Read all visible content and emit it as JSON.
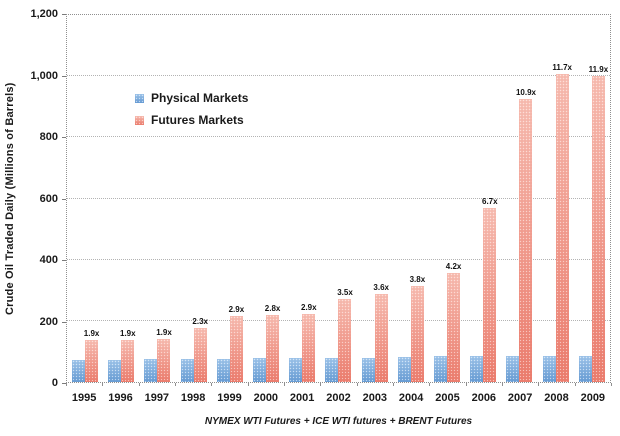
{
  "chart_data": {
    "type": "bar",
    "title": "",
    "ylabel": "Crude Oil Traded Daily (Millions of Barrels)",
    "footnote": "NYMEX WTI Futures + ICE WTI futures + BRENT Futures",
    "categories": [
      "1995",
      "1996",
      "1997",
      "1998",
      "1999",
      "2000",
      "2001",
      "2002",
      "2003",
      "2004",
      "2005",
      "2006",
      "2007",
      "2008",
      "2009"
    ],
    "series": [
      {
        "name": "Physical Markets",
        "key": "physical",
        "color": "#6FA8DC",
        "values": [
          72,
          72,
          74,
          76,
          74,
          78,
          77,
          78,
          80,
          83,
          85,
          85,
          85,
          86,
          84
        ]
      },
      {
        "name": "Futures Markets",
        "key": "futures",
        "color": "#EE8172",
        "values": [
          137,
          137,
          141,
          175,
          215,
          218,
          223,
          273,
          288,
          315,
          357,
          570,
          927,
          1006,
          1000
        ],
        "bar_labels": [
          "1.9x",
          "1.9x",
          "1.9x",
          "2.3x",
          "2.9x",
          "2.8x",
          "2.9x",
          "3.5x",
          "3.6x",
          "3.8x",
          "4.2x",
          "6.7x",
          "10.9x",
          "11.7x",
          "11.9x"
        ]
      }
    ],
    "ylim": [
      0,
      1200
    ],
    "ytick_values": [
      0,
      200,
      400,
      600,
      800,
      1000,
      1200
    ],
    "ytick_labels": [
      "0",
      "200",
      "400",
      "600",
      "800",
      "1,000",
      "1,200"
    ],
    "gridline_values": [
      200,
      400,
      600,
      800,
      1000
    ],
    "grid": true,
    "legend_position": "inside-upper-left"
  },
  "colors": {
    "physical_base": "#6FA8DC",
    "futures_base": "#EE8172",
    "gridline": "#B3B3B3",
    "text": "#1A1A1A"
  }
}
